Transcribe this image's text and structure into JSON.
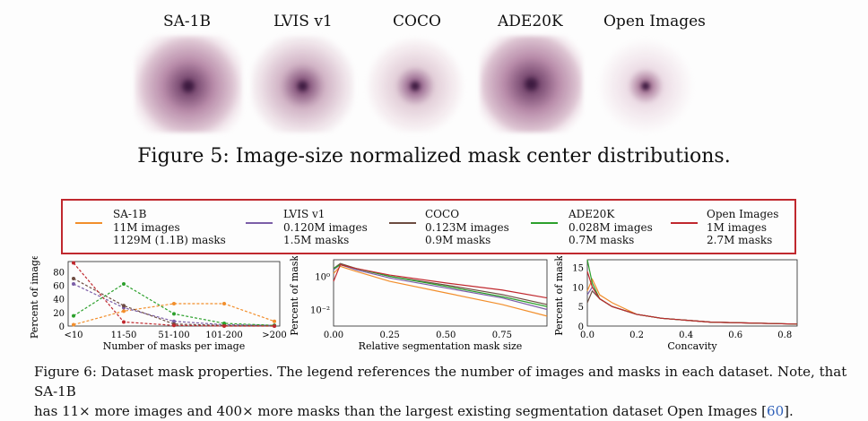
{
  "figure5": {
    "panels": [
      {
        "label": "SA-1B"
      },
      {
        "label": "LVIS v1"
      },
      {
        "label": "COCO"
      },
      {
        "label": "ADE20K"
      },
      {
        "label": "Open Images"
      }
    ],
    "caption": "Figure 5: Image-size normalized mask center distributions."
  },
  "legend": [
    {
      "name": "SA-1B",
      "images": "11M images",
      "masks": "1129M (1.1B) masks",
      "color": "#f28e2b"
    },
    {
      "name": "LVIS v1",
      "images": "0.120M images",
      "masks": "1.5M masks",
      "color": "#7b5ea7"
    },
    {
      "name": "COCO",
      "images": "0.123M images",
      "masks": "0.9M masks",
      "color": "#6d4c41"
    },
    {
      "name": "ADE20K",
      "images": "0.028M images",
      "masks": "0.7M masks",
      "color": "#2ca02c"
    },
    {
      "name": "Open Images",
      "images": "1M images",
      "masks": "2.7M masks",
      "color": "#c0282e"
    }
  ],
  "chart_data": [
    {
      "type": "line",
      "xlabel": "Number of masks per image",
      "ylabel": "Percent of images",
      "categories": [
        "<10",
        "11-50",
        "51-100",
        "101-200",
        ">200"
      ],
      "yticks": [
        "0",
        "20",
        "40",
        "60",
        "80"
      ],
      "ylim": [
        0,
        95
      ],
      "series": [
        {
          "values": [
            2,
            22,
            33,
            33,
            7
          ],
          "color": "#f28e2b"
        },
        {
          "values": [
            62,
            27,
            7,
            2,
            1
          ],
          "color": "#7b5ea7"
        },
        {
          "values": [
            70,
            30,
            3,
            1,
            0
          ],
          "color": "#6d4c41"
        },
        {
          "values": [
            15,
            62,
            18,
            4,
            1
          ],
          "color": "#2ca02c"
        },
        {
          "values": [
            93,
            6,
            1,
            0,
            0
          ],
          "color": "#c0282e"
        }
      ]
    },
    {
      "type": "line",
      "xlabel": "Relative segmentation mask size",
      "ylabel": "Percent of masks",
      "log_y": true,
      "ylim": [
        0.001,
        10
      ],
      "xlim": [
        0,
        0.95
      ],
      "xticks": [
        "0.00",
        "0.25",
        "0.50",
        "0.75"
      ],
      "yticks": [
        "10⁰",
        "10⁻²"
      ],
      "series": [
        {
          "x": [
            0,
            0.03,
            0.1,
            0.25,
            0.5,
            0.75,
            0.95
          ],
          "y": [
            1.5,
            4,
            2,
            0.5,
            0.1,
            0.02,
            0.004
          ],
          "color": "#f28e2b"
        },
        {
          "x": [
            0,
            0.03,
            0.1,
            0.25,
            0.5,
            0.75,
            0.95
          ],
          "y": [
            2.5,
            5,
            2.5,
            0.8,
            0.2,
            0.05,
            0.01
          ],
          "color": "#7b5ea7"
        },
        {
          "x": [
            0,
            0.03,
            0.1,
            0.25,
            0.5,
            0.75,
            0.95
          ],
          "y": [
            3,
            6,
            3,
            1,
            0.3,
            0.08,
            0.02
          ],
          "color": "#6d4c41"
        },
        {
          "x": [
            0,
            0.03,
            0.1,
            0.25,
            0.5,
            0.75,
            0.95
          ],
          "y": [
            3,
            5,
            3,
            1,
            0.25,
            0.06,
            0.015
          ],
          "color": "#2ca02c"
        },
        {
          "x": [
            0,
            0.03,
            0.1,
            0.25,
            0.5,
            0.75,
            0.95
          ],
          "y": [
            0.5,
            5,
            3,
            1.2,
            0.4,
            0.15,
            0.05
          ],
          "color": "#c0282e"
        }
      ]
    },
    {
      "type": "line",
      "xlabel": "Concavity",
      "ylabel": "Percent of masks",
      "xlim": [
        0,
        0.85
      ],
      "ylim": [
        0,
        17
      ],
      "xticks": [
        "0.0",
        "0.2",
        "0.4",
        "0.6",
        "0.8"
      ],
      "yticks": [
        "0",
        "5",
        "10",
        "15"
      ],
      "series": [
        {
          "x": [
            0,
            0.02,
            0.05,
            0.1,
            0.2,
            0.3,
            0.5,
            0.85
          ],
          "y": [
            9,
            12,
            8,
            6,
            3,
            2,
            1,
            0.5
          ],
          "color": "#f28e2b"
        },
        {
          "x": [
            0,
            0.02,
            0.05,
            0.1,
            0.2,
            0.3,
            0.5,
            0.85
          ],
          "y": [
            8,
            10,
            7,
            5,
            3,
            2,
            1,
            0.5
          ],
          "color": "#7b5ea7"
        },
        {
          "x": [
            0,
            0.02,
            0.05,
            0.1,
            0.2,
            0.3,
            0.5,
            0.85
          ],
          "y": [
            6,
            9,
            7,
            5,
            3,
            2,
            1,
            0.5
          ],
          "color": "#6d4c41"
        },
        {
          "x": [
            0,
            0.02,
            0.05,
            0.1,
            0.2,
            0.3,
            0.5,
            0.85
          ],
          "y": [
            17,
            11,
            7,
            5,
            3,
            2,
            1,
            0.5
          ],
          "color": "#2ca02c"
        },
        {
          "x": [
            0,
            0.02,
            0.05,
            0.1,
            0.2,
            0.3,
            0.5,
            0.85
          ],
          "y": [
            14,
            10,
            7,
            5,
            3,
            2,
            1,
            0.5
          ],
          "color": "#c0282e"
        }
      ]
    }
  ],
  "figure6": {
    "caption_line1": "Figure 6: Dataset mask properties. The legend references the number of images and masks in each dataset. Note, that SA-1B",
    "caption_line2_pre": "has 11× more images and 400× more masks than the largest existing segmentation dataset Open Images [",
    "caption_ref": "60",
    "caption_line2_post": "]."
  }
}
